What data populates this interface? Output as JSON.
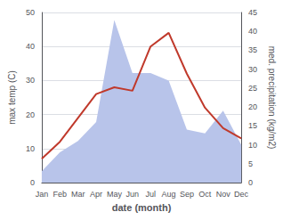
{
  "chart_data": {
    "type": "line",
    "categories": [
      "Jan",
      "Feb",
      "Mar",
      "Apr",
      "May",
      "Jun",
      "Jul",
      "Aug",
      "Sep",
      "Oct",
      "Nov",
      "Dec"
    ],
    "series": [
      {
        "type": "area",
        "color": "#b8c4ea",
        "axis": "y2",
        "values": [
          3,
          8,
          11,
          16,
          43,
          29,
          29,
          27,
          14,
          13,
          19,
          10
        ]
      },
      {
        "type": "line",
        "color": "#c0392b",
        "values": [
          7,
          12,
          19,
          26,
          28,
          27,
          40,
          44,
          32,
          22,
          16,
          13
        ]
      }
    ],
    "xlabel": "date (month)",
    "ylabel": "max temp (C)",
    "y2label": "med. precipitation (kg/m2)",
    "ylim": [
      0,
      50
    ],
    "yticks": [
      0,
      10,
      20,
      30,
      40,
      50
    ],
    "y2lim": [
      0,
      45
    ],
    "y2ticks": [
      0,
      5,
      10,
      15,
      20,
      25,
      30,
      35,
      40,
      45
    ],
    "grid": true
  }
}
